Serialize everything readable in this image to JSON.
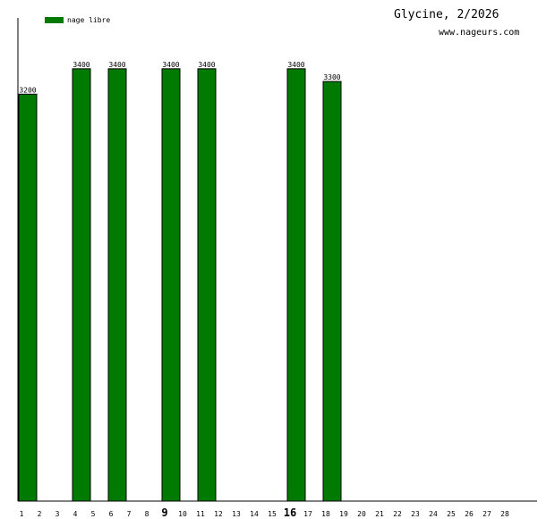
{
  "header": {
    "title": "Glycine, 2/2026",
    "site": "www.nageurs.com"
  },
  "legend": {
    "label": "nage libre",
    "color": "#007a00"
  },
  "chart_data": {
    "type": "bar",
    "categories": [
      "1",
      "2",
      "3",
      "4",
      "5",
      "6",
      "7",
      "8",
      "9",
      "10",
      "11",
      "12",
      "13",
      "14",
      "15",
      "16",
      "17",
      "18",
      "19",
      "20",
      "21",
      "22",
      "23",
      "24",
      "25",
      "26",
      "27",
      "28"
    ],
    "emphasized_categories": [
      "9",
      "16"
    ],
    "series": [
      {
        "name": "nage libre",
        "color": "#007a00",
        "values": [
          3200,
          null,
          null,
          3400,
          null,
          3400,
          null,
          null,
          3400,
          null,
          3400,
          null,
          null,
          null,
          null,
          3400,
          null,
          3300,
          null,
          null,
          null,
          null,
          null,
          null,
          null,
          null,
          null,
          null
        ]
      }
    ],
    "ylim": [
      0,
      3800
    ],
    "grid": false,
    "legend_position": "top-left"
  }
}
